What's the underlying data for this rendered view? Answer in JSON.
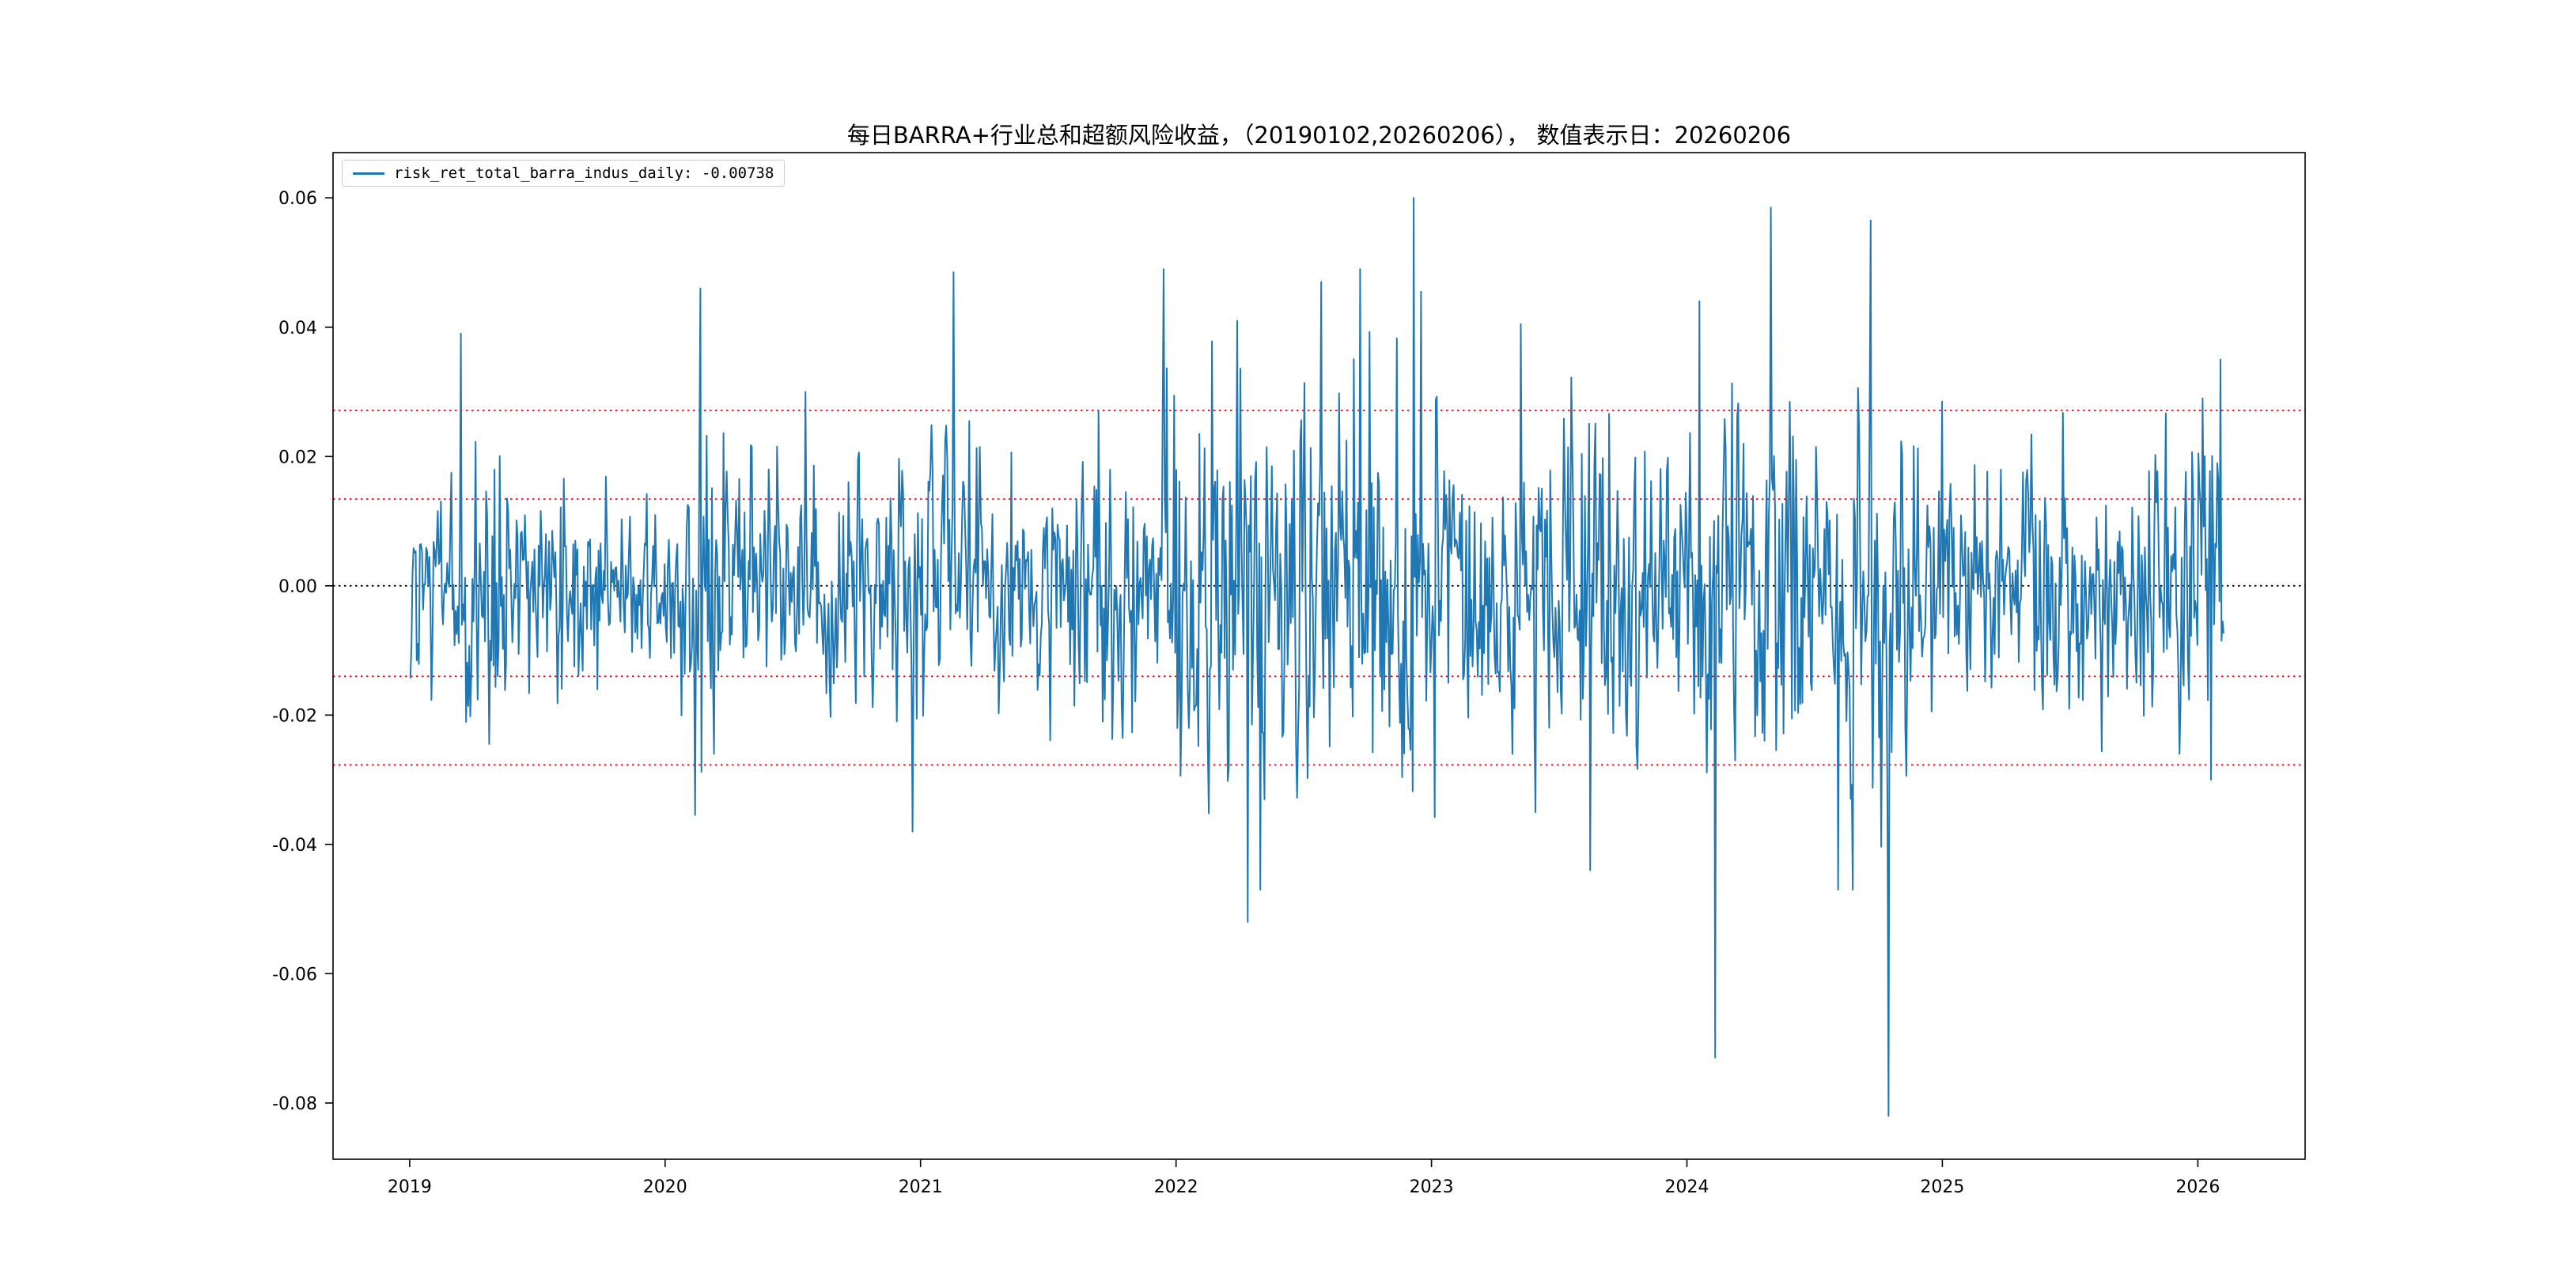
{
  "window": {
    "background": "#ffffff"
  },
  "chart_data": {
    "type": "line",
    "title": "每日BARRA+行业总和超额风险收益，（20190102,20260206）， 数值表示日：20260206",
    "legend_label": "risk_ret_total_barra_indus_daily: -0.00738",
    "legend_position": "upper left",
    "grid": false,
    "xlim": [
      2018.7,
      2026.42
    ],
    "ylim": [
      -0.0887,
      0.067
    ],
    "x_data_range": [
      2019.003,
      2026.101
    ],
    "x_ticks": [
      {
        "value": 2019,
        "label": "2019"
      },
      {
        "value": 2020,
        "label": "2020"
      },
      {
        "value": 2021,
        "label": "2021"
      },
      {
        "value": 2022,
        "label": "2022"
      },
      {
        "value": 2023,
        "label": "2023"
      },
      {
        "value": 2024,
        "label": "2024"
      },
      {
        "value": 2025,
        "label": "2025"
      },
      {
        "value": 2026,
        "label": "2026"
      }
    ],
    "y_ticks": [
      {
        "value": 0.06,
        "label": "0.06"
      },
      {
        "value": 0.04,
        "label": "0.04"
      },
      {
        "value": 0.02,
        "label": "0.02"
      },
      {
        "value": 0.0,
        "label": "0.00"
      },
      {
        "value": -0.02,
        "label": "-0.02"
      },
      {
        "value": -0.04,
        "label": "-0.04"
      },
      {
        "value": -0.06,
        "label": "-0.06"
      },
      {
        "value": -0.08,
        "label": "-0.08"
      }
    ],
    "hlines": [
      {
        "y": 0.0,
        "color": "#000000",
        "style": "dotted"
      },
      {
        "y": 0.0134,
        "color": "#ff0000",
        "style": "dotted"
      },
      {
        "y": 0.0271,
        "color": "#ff0000",
        "style": "dotted"
      },
      {
        "y": -0.014,
        "color": "#ff0000",
        "style": "dotted"
      },
      {
        "y": -0.0277,
        "color": "#ff0000",
        "style": "dotted"
      }
    ],
    "series": [
      {
        "name": "risk_ret_total_barra_indus_daily",
        "color": "#1f77b4",
        "last_value": -0.00738,
        "n_points": 1727,
        "seed": 20260206,
        "mean": 0.0,
        "volatility": [
          [
            2019.0,
            0.006
          ],
          [
            2019.15,
            0.0095
          ],
          [
            2019.4,
            0.007
          ],
          [
            2020.05,
            0.012
          ],
          [
            2020.35,
            0.0085
          ],
          [
            2020.95,
            0.011
          ],
          [
            2021.25,
            0.008
          ],
          [
            2021.6,
            0.011
          ],
          [
            2022.0,
            0.016
          ],
          [
            2022.6,
            0.014
          ],
          [
            2023.1,
            0.011
          ],
          [
            2023.5,
            0.012
          ],
          [
            2023.85,
            0.01
          ],
          [
            2024.0,
            0.014
          ],
          [
            2024.9,
            0.01
          ],
          [
            2025.3,
            0.009
          ],
          [
            2025.8,
            0.011
          ]
        ],
        "notable_points": [
          [
            2019.2,
            0.039
          ],
          [
            2020.14,
            0.046
          ],
          [
            2020.19,
            -0.026
          ],
          [
            2020.55,
            0.03
          ],
          [
            2020.97,
            -0.038
          ],
          [
            2021.13,
            0.0485
          ],
          [
            2021.95,
            0.049
          ],
          [
            2022.24,
            0.041
          ],
          [
            2022.28,
            -0.052
          ],
          [
            2022.33,
            -0.047
          ],
          [
            2022.72,
            0.049
          ],
          [
            2022.93,
            0.06
          ],
          [
            2022.96,
            0.0455
          ],
          [
            2023.35,
            0.0405
          ],
          [
            2023.62,
            -0.044
          ],
          [
            2024.05,
            0.044
          ],
          [
            2024.11,
            -0.073
          ],
          [
            2024.33,
            0.0585
          ],
          [
            2024.72,
            0.0565
          ],
          [
            2024.79,
            -0.082
          ],
          [
            2025.0,
            0.0285
          ],
          [
            2026.02,
            0.029
          ],
          [
            2026.05,
            -0.03
          ],
          [
            2026.09,
            0.035
          ]
        ]
      }
    ]
  }
}
